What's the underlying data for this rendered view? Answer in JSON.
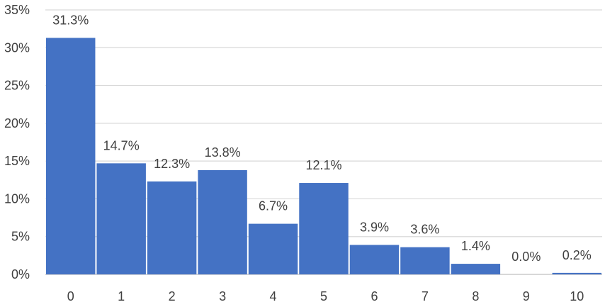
{
  "chart_data": {
    "type": "bar",
    "categories": [
      "0",
      "1",
      "2",
      "3",
      "4",
      "5",
      "6",
      "7",
      "8",
      "9",
      "10"
    ],
    "values": [
      31.3,
      14.7,
      12.3,
      13.8,
      6.7,
      12.1,
      3.9,
      3.6,
      1.4,
      0.0,
      0.2
    ],
    "data_labels": [
      "31.3%",
      "14.7%",
      "12.3%",
      "13.8%",
      "6.7%",
      "12.1%",
      "3.9%",
      "3.6%",
      "1.4%",
      "0.0%",
      "0.2%"
    ],
    "y_ticks": [
      "0%",
      "5%",
      "10%",
      "15%",
      "20%",
      "25%",
      "30%",
      "35%"
    ],
    "ylim": [
      0,
      35
    ],
    "grid": true,
    "bar_color": "#4472C4"
  }
}
